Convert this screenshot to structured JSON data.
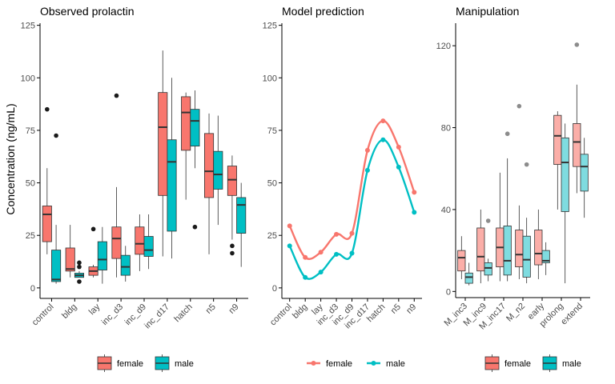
{
  "figure": {
    "y_label": "Concentration (ng/mL)"
  },
  "colors": {
    "female": "#F8766D",
    "male": "#00BFC4",
    "female_light": "#FBAEA8",
    "male_light": "#7FDCE0",
    "axis": "#000000",
    "box_line": "#333333",
    "tick_text": "#4D4D4D"
  },
  "chart_data": [
    {
      "type": "boxplot",
      "title": "Observed prolactin",
      "ylabel": "Concentration (ng/mL)",
      "ylim": [
        -5,
        126
      ],
      "yticks": [
        0,
        25,
        50,
        75,
        100,
        125
      ],
      "categories": [
        "control",
        "bldg",
        "lay",
        "inc_d3",
        "inc_d9",
        "inc_d17",
        "hatch",
        "n5",
        "n9"
      ],
      "legend": {
        "position": "bottom",
        "entries": [
          "female",
          "male"
        ]
      },
      "series": [
        {
          "name": "female",
          "boxes": [
            {
              "min": 16,
              "q1": 22,
              "median": 35,
              "q3": 39,
              "max": 57,
              "outliers": [
                85
              ]
            },
            {
              "min": 5,
              "q1": 8,
              "median": 9,
              "q3": 19,
              "max": 30,
              "outliers": []
            },
            {
              "min": 5,
              "q1": 6,
              "median": 8,
              "q3": 10,
              "max": 11,
              "outliers": [
                28
              ]
            },
            {
              "min": 5,
              "q1": 14,
              "median": 23.5,
              "q3": 29,
              "max": 48,
              "outliers": [
                91.5
              ]
            },
            {
              "min": 8,
              "q1": 16,
              "median": 21,
              "q3": 29,
              "max": 35,
              "outliers": []
            },
            {
              "min": 15,
              "q1": 44,
              "median": 76.5,
              "q3": 93,
              "max": 113,
              "outliers": []
            },
            {
              "min": 42,
              "q1": 65.5,
              "median": 83.5,
              "q3": 91,
              "max": 93,
              "outliers": []
            },
            {
              "min": 16,
              "q1": 43,
              "median": 55.5,
              "q3": 73.5,
              "max": 83,
              "outliers": []
            },
            {
              "min": 23,
              "q1": 44,
              "median": 51.5,
              "q3": 58,
              "max": 63,
              "outliers": [
                20,
                16.5
              ]
            }
          ]
        },
        {
          "name": "male",
          "boxes": [
            {
              "min": 2,
              "q1": 3,
              "median": 4,
              "q3": 18,
              "max": 30,
              "outliers": [
                72.5
              ]
            },
            {
              "min": 5,
              "q1": 5,
              "median": 6,
              "q3": 7,
              "max": 8,
              "outliers": [
                12,
                10,
                3
              ]
            },
            {
              "min": 2,
              "q1": 8.5,
              "median": 13.5,
              "q3": 22,
              "max": 29,
              "outliers": []
            },
            {
              "min": 3,
              "q1": 6,
              "median": 10,
              "q3": 15.5,
              "max": 20,
              "outliers": []
            },
            {
              "min": 9,
              "q1": 15,
              "median": 18,
              "q3": 24.5,
              "max": 35,
              "outliers": []
            },
            {
              "min": 14,
              "q1": 27,
              "median": 60,
              "q3": 70.5,
              "max": 100,
              "outliers": []
            },
            {
              "min": 57,
              "q1": 67.5,
              "median": 79.5,
              "q3": 85,
              "max": 94,
              "outliers": [
                29
              ]
            },
            {
              "min": 30,
              "q1": 47,
              "median": 54,
              "q3": 65,
              "max": 82,
              "outliers": []
            },
            {
              "min": 10,
              "q1": 26,
              "median": 39.5,
              "q3": 43,
              "max": 50,
              "outliers": []
            }
          ]
        }
      ]
    },
    {
      "type": "line",
      "title": "Model prediction",
      "ylim": [
        -5,
        126
      ],
      "yticks": [
        0,
        25,
        50,
        75,
        100,
        125
      ],
      "categories": [
        "control",
        "bldg",
        "lay",
        "inc_d3",
        "inc_d9",
        "inc_d17",
        "hatch",
        "n5",
        "n9"
      ],
      "legend": {
        "position": "bottom",
        "entries": [
          "female",
          "male"
        ]
      },
      "series": [
        {
          "name": "female",
          "points": [
            29.5,
            14.5,
            17,
            25.5,
            26,
            65.5,
            79.5,
            67,
            45.5
          ]
        },
        {
          "name": "male",
          "points": [
            20,
            5,
            7.5,
            16,
            16.5,
            56,
            70.5,
            57.5,
            36
          ]
        }
      ]
    },
    {
      "type": "boxplot",
      "title": "Manipulation",
      "ylim": [
        -3,
        131
      ],
      "yticks": [
        0,
        40,
        80,
        120
      ],
      "categories": [
        "M_inc3",
        "M_inc9",
        "M_inc17",
        "M_n2",
        "early",
        "prolong",
        "extend"
      ],
      "legend": {
        "position": "bottom",
        "entries": [
          "female",
          "male"
        ]
      },
      "series": [
        {
          "name": "female",
          "boxes": [
            {
              "min": 6,
              "q1": 10,
              "median": 16.5,
              "q3": 20,
              "max": 27,
              "outliers": []
            },
            {
              "min": 4,
              "q1": 10,
              "median": 17,
              "q3": 31,
              "max": 40,
              "outliers": []
            },
            {
              "min": 5,
              "q1": 12,
              "median": 21.5,
              "q3": 31,
              "max": 58,
              "outliers": []
            },
            {
              "min": 6,
              "q1": 12,
              "median": 18,
              "q3": 30,
              "max": 42,
              "outliers": [
                90.5
              ]
            },
            {
              "min": 6,
              "q1": 13,
              "median": 18.5,
              "q3": 30,
              "max": 40,
              "outliers": []
            },
            {
              "min": 40,
              "q1": 62,
              "median": 76,
              "q3": 86,
              "max": 88,
              "outliers": []
            },
            {
              "min": 48,
              "q1": 61,
              "median": 73,
              "q3": 82,
              "max": 101,
              "outliers": [
                120.5
              ]
            }
          ]
        },
        {
          "name": "male",
          "boxes": [
            {
              "min": 3,
              "q1": 4,
              "median": 7,
              "q3": 9,
              "max": 14,
              "outliers": []
            },
            {
              "min": 5,
              "q1": 8,
              "median": 11.5,
              "q3": 14,
              "max": 16,
              "outliers": [
                34.5
              ]
            },
            {
              "min": 5,
              "q1": 8,
              "median": 15,
              "q3": 32,
              "max": 65,
              "outliers": [
                77
              ]
            },
            {
              "min": 4,
              "q1": 7,
              "median": 15.5,
              "q3": 27,
              "max": 36,
              "outliers": [
                62
              ]
            },
            {
              "min": 8,
              "q1": 14,
              "median": 15,
              "q3": 20,
              "max": 24,
              "outliers": []
            },
            {
              "min": 4,
              "q1": 39,
              "median": 63,
              "q3": 75,
              "max": 82,
              "outliers": []
            },
            {
              "min": 36,
              "q1": 49,
              "median": 61,
              "q3": 67,
              "max": 75,
              "outliers": []
            }
          ]
        }
      ]
    }
  ]
}
